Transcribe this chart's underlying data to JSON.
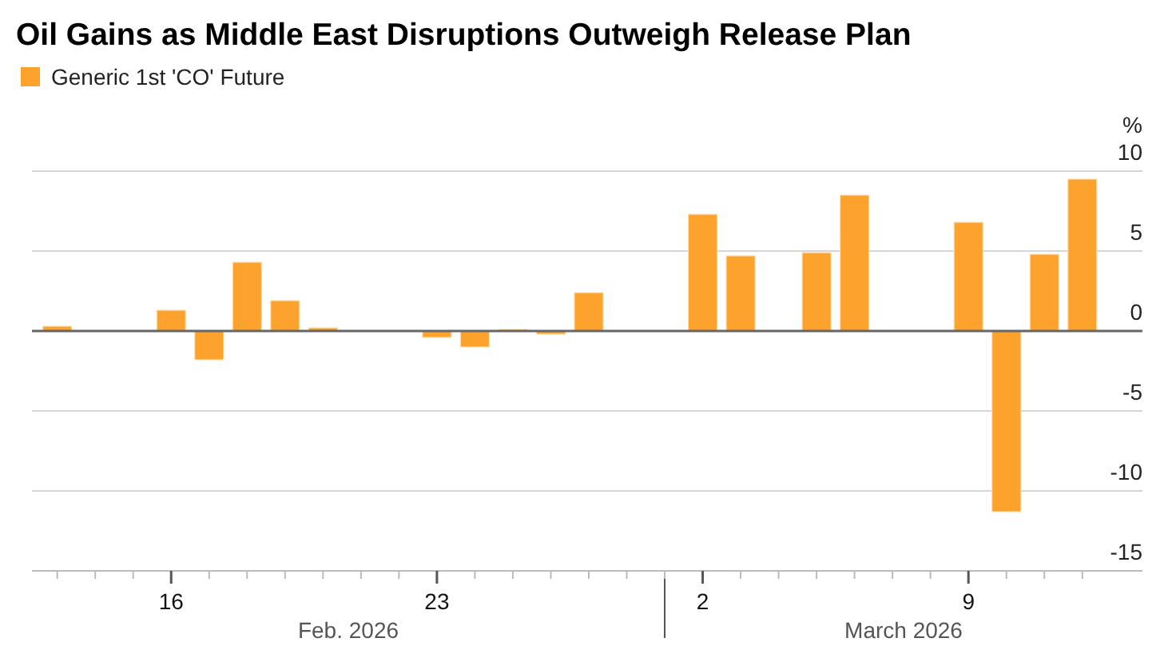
{
  "chart_data": {
    "type": "bar",
    "title": "Oil Gains as Middle East Disruptions Outweigh Release Plan",
    "ylabel": "%",
    "x": [
      "2026-02-13",
      "2026-02-16",
      "2026-02-17",
      "2026-02-18",
      "2026-02-19",
      "2026-02-20",
      "2026-02-23",
      "2026-02-24",
      "2026-02-25",
      "2026-02-26",
      "2026-02-27",
      "2026-03-02",
      "2026-03-03",
      "2026-03-05",
      "2026-03-06",
      "2026-03-09",
      "2026-03-10",
      "2026-03-11",
      "2026-03-12"
    ],
    "series": [
      {
        "name": "Generic 1st 'CO' Future",
        "color": "#fda22c",
        "values": [
          0.3,
          1.3,
          -1.8,
          4.3,
          1.9,
          0.2,
          -0.4,
          -1.0,
          0.1,
          -0.2,
          2.4,
          7.3,
          4.7,
          4.9,
          8.5,
          6.8,
          -11.3,
          4.8,
          9.5
        ]
      }
    ],
    "xlim": [
      "2026-02-12T08:00",
      "2026-03-13T14:00"
    ],
    "xticks": [
      {
        "value": "2026-02-13",
        "label": null
      },
      {
        "value": "2026-02-14",
        "label": null
      },
      {
        "value": "2026-02-15",
        "label": null
      },
      {
        "value": "2026-02-16",
        "label": "16"
      },
      {
        "value": "2026-02-17",
        "label": null
      },
      {
        "value": "2026-02-18",
        "label": null
      },
      {
        "value": "2026-02-19",
        "label": null
      },
      {
        "value": "2026-02-20",
        "label": null
      },
      {
        "value": "2026-02-21",
        "label": null
      },
      {
        "value": "2026-02-22",
        "label": null
      },
      {
        "value": "2026-02-23",
        "label": "23"
      },
      {
        "value": "2026-02-24",
        "label": null
      },
      {
        "value": "2026-02-25",
        "label": null
      },
      {
        "value": "2026-02-26",
        "label": null
      },
      {
        "value": "2026-02-27",
        "label": null
      },
      {
        "value": "2026-02-28",
        "label": null
      },
      {
        "value": "2026-03-01",
        "label": null
      },
      {
        "value": "2026-03-02",
        "label": "2"
      },
      {
        "value": "2026-03-03",
        "label": null
      },
      {
        "value": "2026-03-04",
        "label": null
      },
      {
        "value": "2026-03-05",
        "label": null
      },
      {
        "value": "2026-03-06",
        "label": null
      },
      {
        "value": "2026-03-07",
        "label": null
      },
      {
        "value": "2026-03-08",
        "label": null
      },
      {
        "value": "2026-03-09",
        "label": "9"
      },
      {
        "value": "2026-03-10",
        "label": null
      },
      {
        "value": "2026-03-11",
        "label": null
      },
      {
        "value": "2026-03-12",
        "label": null
      }
    ],
    "ylim": [
      -15,
      10
    ],
    "yticks": [
      -15,
      -10,
      -5,
      0,
      5,
      10
    ],
    "grid": "y",
    "legend": "top left",
    "annotations": [
      "Feb. 2026",
      "March 2026"
    ]
  }
}
